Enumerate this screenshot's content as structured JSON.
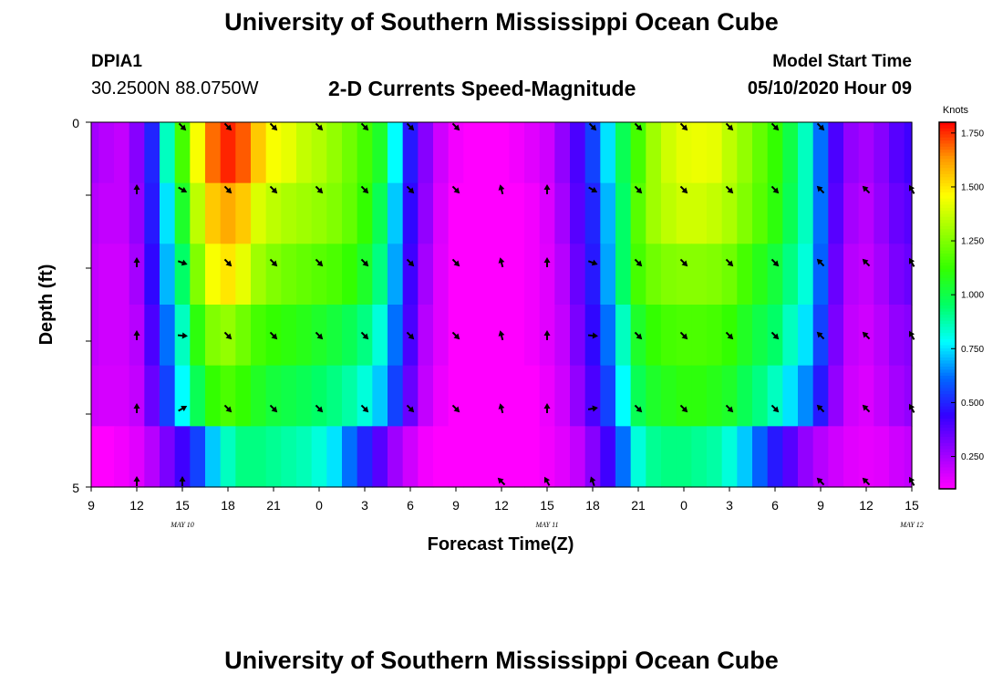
{
  "header": {
    "title": "University of Southern Mississippi Ocean Cube",
    "station_id": "DPIA1",
    "station_coords": "30.2500N 88.0750W",
    "model_start_label": "Model Start Time",
    "model_start_time": "05/10/2020 Hour 09"
  },
  "footer": {
    "title": "University of Southern Mississippi Ocean Cube"
  },
  "colors": {
    "colormap": [
      "#ff00ff",
      "#9900ff",
      "#3300ff",
      "#0066ff",
      "#00ffff",
      "#00ff66",
      "#33ff00",
      "#99ff00",
      "#ffff00",
      "#ff9900",
      "#ff0000"
    ],
    "arrow": "#000000",
    "frame": "#000000"
  },
  "chart_data": {
    "type": "heatmap",
    "title": "2-D Currents Speed-Magnitude",
    "xlabel": "Forecast Time(Z)",
    "ylabel": "Depth (ft)",
    "x_tick_labels": [
      "9",
      "12",
      "15",
      "18",
      "21",
      "0",
      "3",
      "6",
      "9",
      "12",
      "15",
      "18",
      "21",
      "0",
      "3",
      "6",
      "9",
      "12",
      "15"
    ],
    "date_labels": [
      {
        "label": "MAY  10",
        "hour_offset": 6
      },
      {
        "label": "MAY  11",
        "hour_offset": 30
      },
      {
        "label": "MAY  12",
        "hour_offset": 54
      }
    ],
    "y_tick_labels": [
      "0",
      "5"
    ],
    "ylim": [
      0,
      5
    ],
    "y_minor_ticks": 4,
    "colorbar": {
      "label": "Knots",
      "ticks": [
        "0.250",
        "0.500",
        "0.750",
        "1.000",
        "1.250",
        "1.500",
        "1.750"
      ],
      "tick_values": [
        0.25,
        0.5,
        0.75,
        1.0,
        1.25,
        1.5,
        1.75
      ],
      "range": [
        0.1,
        1.8
      ]
    },
    "time_hours": [
      0,
      1,
      2,
      3,
      4,
      5,
      6,
      7,
      8,
      9,
      10,
      11,
      12,
      13,
      14,
      15,
      16,
      17,
      18,
      19,
      20,
      21,
      22,
      23,
      24,
      25,
      26,
      27,
      28,
      29,
      30,
      31,
      32,
      33,
      34,
      35,
      36,
      37,
      38,
      39,
      40,
      41,
      42,
      43,
      44,
      45,
      46,
      47,
      48,
      49,
      50,
      51,
      52,
      53,
      54
    ],
    "depth_ft": [
      0,
      1,
      2,
      3,
      4,
      5
    ],
    "speed_knots": [
      [
        0.25,
        0.22,
        0.2,
        0.3,
        0.5,
        0.85,
        1.15,
        1.45,
        1.68,
        1.76,
        1.7,
        1.55,
        1.45,
        1.42,
        1.36,
        1.33,
        1.28,
        1.22,
        1.15,
        1.05,
        0.78,
        0.48,
        0.3,
        0.18,
        0.12,
        0.1,
        0.1,
        0.1,
        0.12,
        0.15,
        0.18,
        0.28,
        0.4,
        0.55,
        0.75,
        0.98,
        1.15,
        1.3,
        1.38,
        1.42,
        1.43,
        1.42,
        1.35,
        1.28,
        1.2,
        1.12,
        1.0,
        0.85,
        0.62,
        0.4,
        0.28,
        0.25,
        0.3,
        0.38,
        0.42
      ],
      [
        0.22,
        0.2,
        0.2,
        0.28,
        0.48,
        0.75,
        1.05,
        1.35,
        1.55,
        1.6,
        1.55,
        1.4,
        1.35,
        1.32,
        1.3,
        1.28,
        1.25,
        1.2,
        1.12,
        0.98,
        0.72,
        0.45,
        0.28,
        0.16,
        0.1,
        0.1,
        0.1,
        0.1,
        0.1,
        0.12,
        0.16,
        0.25,
        0.38,
        0.5,
        0.7,
        0.95,
        1.18,
        1.3,
        1.35,
        1.38,
        1.38,
        1.36,
        1.32,
        1.25,
        1.18,
        1.1,
        0.98,
        0.85,
        0.62,
        0.38,
        0.25,
        0.22,
        0.28,
        0.35,
        0.38
      ],
      [
        0.2,
        0.18,
        0.18,
        0.25,
        0.45,
        0.7,
        0.95,
        1.25,
        1.45,
        1.5,
        1.42,
        1.3,
        1.25,
        1.22,
        1.2,
        1.18,
        1.16,
        1.12,
        1.05,
        0.92,
        0.68,
        0.42,
        0.25,
        0.15,
        0.1,
        0.1,
        0.1,
        0.1,
        0.1,
        0.12,
        0.15,
        0.22,
        0.35,
        0.48,
        0.68,
        0.95,
        1.15,
        1.22,
        1.25,
        1.26,
        1.26,
        1.25,
        1.22,
        1.15,
        1.08,
        1.02,
        0.92,
        0.82,
        0.6,
        0.35,
        0.22,
        0.2,
        0.25,
        0.32,
        0.35
      ],
      [
        0.2,
        0.18,
        0.18,
        0.22,
        0.4,
        0.62,
        0.85,
        1.1,
        1.25,
        1.28,
        1.22,
        1.15,
        1.12,
        1.1,
        1.08,
        1.05,
        1.02,
        0.98,
        0.92,
        0.82,
        0.62,
        0.4,
        0.22,
        0.15,
        0.1,
        0.1,
        0.1,
        0.1,
        0.1,
        0.12,
        0.15,
        0.2,
        0.32,
        0.45,
        0.62,
        0.85,
        1.05,
        1.12,
        1.15,
        1.16,
        1.16,
        1.15,
        1.12,
        1.06,
        1.0,
        0.95,
        0.85,
        0.75,
        0.55,
        0.32,
        0.2,
        0.18,
        0.22,
        0.28,
        0.3
      ],
      [
        0.18,
        0.17,
        0.17,
        0.2,
        0.35,
        0.55,
        0.78,
        0.98,
        1.12,
        1.16,
        1.12,
        1.06,
        1.02,
        1.0,
        0.98,
        0.95,
        0.92,
        0.88,
        0.82,
        0.72,
        0.55,
        0.35,
        0.2,
        0.13,
        0.1,
        0.1,
        0.1,
        0.1,
        0.1,
        0.1,
        0.13,
        0.18,
        0.28,
        0.4,
        0.55,
        0.78,
        0.98,
        1.05,
        1.08,
        1.1,
        1.1,
        1.08,
        1.05,
        0.98,
        0.92,
        0.85,
        0.75,
        0.65,
        0.48,
        0.28,
        0.18,
        0.16,
        0.2,
        0.25,
        0.28
      ],
      [
        0.1,
        0.1,
        0.12,
        0.15,
        0.22,
        0.32,
        0.42,
        0.55,
        0.72,
        0.85,
        0.92,
        0.92,
        0.9,
        0.88,
        0.86,
        0.82,
        0.75,
        0.62,
        0.5,
        0.38,
        0.26,
        0.18,
        0.12,
        0.1,
        0.1,
        0.1,
        0.1,
        0.1,
        0.1,
        0.1,
        0.12,
        0.15,
        0.2,
        0.3,
        0.42,
        0.62,
        0.82,
        0.9,
        0.92,
        0.92,
        0.9,
        0.88,
        0.82,
        0.72,
        0.6,
        0.48,
        0.38,
        0.28,
        0.22,
        0.18,
        0.15,
        0.14,
        0.15,
        0.18,
        0.2
      ]
    ],
    "vectors": {
      "time_hours": [
        3,
        6,
        9,
        12,
        15,
        18,
        21,
        24,
        27,
        30,
        33,
        36,
        39,
        42,
        45,
        48,
        51,
        54
      ],
      "depth_ft": [
        0,
        1,
        2,
        3,
        4,
        5
      ],
      "direction_deg": [
        [
          null,
          135,
          135,
          135,
          135,
          135,
          135,
          135,
          null,
          null,
          135,
          135,
          135,
          135,
          135,
          135,
          null,
          null
        ],
        [
          0,
          120,
          135,
          135,
          135,
          135,
          135,
          135,
          345,
          0,
          120,
          135,
          135,
          135,
          135,
          315,
          315,
          330
        ],
        [
          0,
          110,
          135,
          135,
          135,
          135,
          135,
          135,
          345,
          0,
          110,
          135,
          135,
          135,
          135,
          315,
          315,
          330
        ],
        [
          0,
          95,
          135,
          135,
          135,
          135,
          135,
          135,
          345,
          0,
          95,
          135,
          135,
          135,
          135,
          315,
          315,
          330
        ],
        [
          0,
          60,
          135,
          135,
          135,
          135,
          135,
          135,
          345,
          0,
          80,
          135,
          135,
          135,
          135,
          315,
          315,
          330
        ],
        [
          0,
          0,
          null,
          null,
          null,
          null,
          null,
          null,
          315,
          330,
          340,
          null,
          null,
          null,
          null,
          315,
          315,
          330
        ]
      ]
    }
  }
}
